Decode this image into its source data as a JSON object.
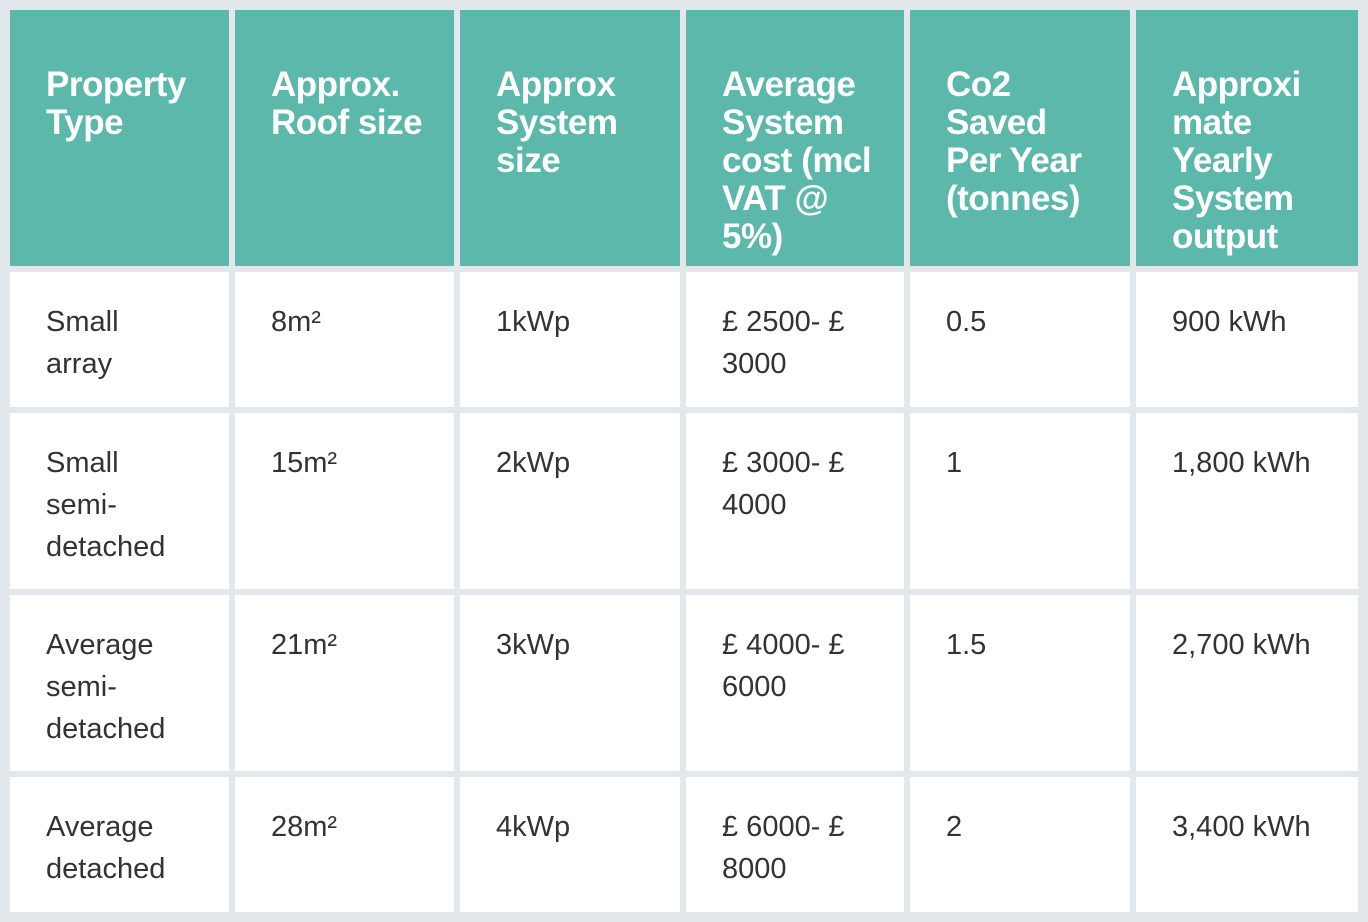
{
  "table": {
    "headers": [
      "Property Type",
      "Approx. Roof size",
      "Approx System size",
      "Average System cost (mcl VAT @ 5%)",
      "Co2 Saved Per Year (tonnes)",
      "Approxi mate Yearly System output"
    ],
    "rows": [
      [
        "Small array",
        "8m²",
        "1kWp",
        "£ 2500- £ 3000",
        "0.5",
        "900 kWh"
      ],
      [
        "Small semi-detached",
        "15m²",
        "2kWp",
        "£ 3000- £ 4000",
        "1",
        "1,800 kWh"
      ],
      [
        "Average semi-detached",
        "21m²",
        "3kWp",
        "£ 4000- £ 6000",
        "1.5",
        "2,700 kWh"
      ],
      [
        "Average detached",
        "28m²",
        "4kWp",
        "£ 6000- £ 8000",
        "2",
        "3,400 kWh"
      ]
    ]
  },
  "colors": {
    "header_bg": "#5bb8ab",
    "header_text": "#ffffff",
    "grid": "#e3e8ec",
    "cell_text": "#333333"
  }
}
